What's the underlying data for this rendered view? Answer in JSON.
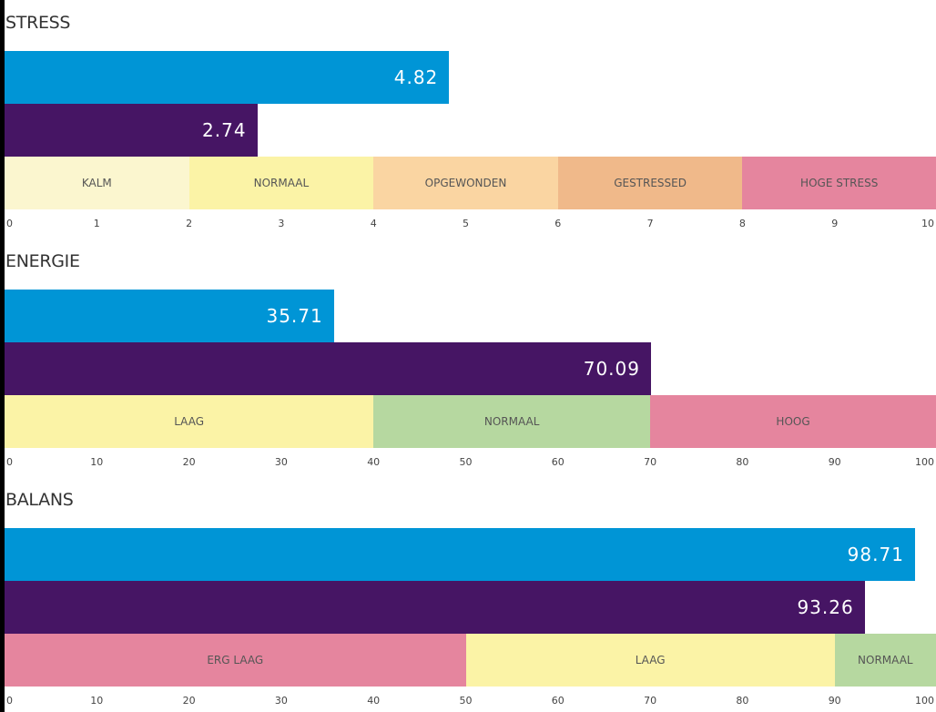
{
  "colors": {
    "series_a": "#0095d6",
    "series_b": "#461564"
  },
  "chart_data": [
    {
      "type": "bar",
      "title": "STRESS",
      "xlim": [
        0,
        10
      ],
      "ticks": [
        "0",
        "1",
        "2",
        "3",
        "4",
        "5",
        "6",
        "7",
        "8",
        "9",
        "10"
      ],
      "tick_values": [
        0,
        1,
        2,
        3,
        4,
        5,
        6,
        7,
        8,
        9,
        10
      ],
      "series": [
        {
          "color": "#0095d6",
          "value": 4.82,
          "label": "4.82"
        },
        {
          "color": "#461564",
          "value": 2.74,
          "label": "2.74"
        }
      ],
      "bands": [
        {
          "label": "KALM",
          "from": 0,
          "to": 2,
          "color": "#fbf6cf"
        },
        {
          "label": "NORMAAL",
          "from": 2,
          "to": 4,
          "color": "#fbf3a6"
        },
        {
          "label": "OPGEWONDEN",
          "from": 4,
          "to": 6,
          "color": "#fad5a2"
        },
        {
          "label": "GESTRESSED",
          "from": 6,
          "to": 8,
          "color": "#f0b98a"
        },
        {
          "label": "HOGE STRESS",
          "from": 8,
          "to": 10,
          "color": "#e5859e"
        }
      ]
    },
    {
      "type": "bar",
      "title": "ENERGIE",
      "xlim": [
        0,
        100
      ],
      "ticks": [
        "0",
        "10",
        "20",
        "30",
        "40",
        "50",
        "60",
        "70",
        "80",
        "90",
        "100"
      ],
      "tick_values": [
        0,
        10,
        20,
        30,
        40,
        50,
        60,
        70,
        80,
        90,
        100
      ],
      "series": [
        {
          "color": "#0095d6",
          "value": 35.71,
          "label": "35.71"
        },
        {
          "color": "#461564",
          "value": 70.09,
          "label": "70.09"
        }
      ],
      "bands": [
        {
          "label": "LAAG",
          "from": 0,
          "to": 40,
          "color": "#fbf3a6"
        },
        {
          "label": "NORMAAL",
          "from": 40,
          "to": 70,
          "color": "#b6d8a0"
        },
        {
          "label": "HOOG",
          "from": 70,
          "to": 100,
          "color": "#e5859e"
        }
      ]
    },
    {
      "type": "bar",
      "title": "BALANS",
      "xlim": [
        0,
        100
      ],
      "ticks": [
        "0",
        "10",
        "20",
        "30",
        "40",
        "50",
        "60",
        "70",
        "80",
        "90",
        "100"
      ],
      "tick_values": [
        0,
        10,
        20,
        30,
        40,
        50,
        60,
        70,
        80,
        90,
        100
      ],
      "series": [
        {
          "color": "#0095d6",
          "value": 98.71,
          "label": "98.71"
        },
        {
          "color": "#461564",
          "value": 93.26,
          "label": "93.26"
        }
      ],
      "bands": [
        {
          "label": "ERG LAAG",
          "from": 0,
          "to": 50,
          "color": "#e5859e"
        },
        {
          "label": "LAAG",
          "from": 50,
          "to": 90,
          "color": "#fbf3a6"
        },
        {
          "label": "NORMAAL",
          "from": 90,
          "to": 100,
          "color": "#b6d8a0"
        }
      ]
    }
  ]
}
